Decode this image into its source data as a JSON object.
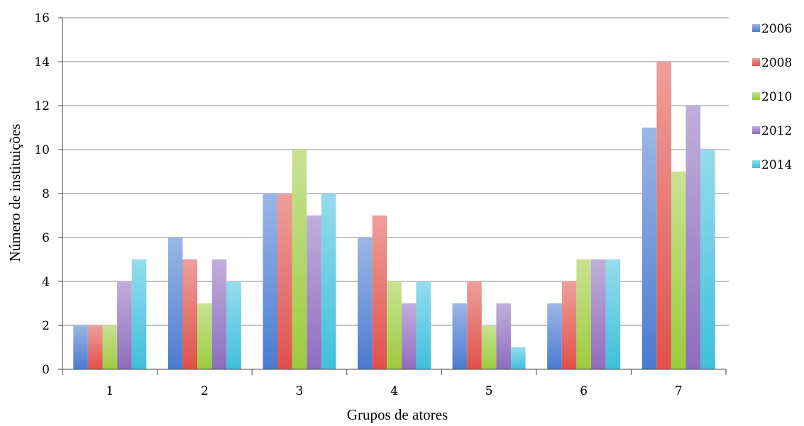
{
  "chart_data": {
    "type": "bar",
    "title": "",
    "xlabel": "Grupos de atores",
    "ylabel": "Número de instituições",
    "categories": [
      "1",
      "2",
      "3",
      "4",
      "5",
      "6",
      "7"
    ],
    "ylim": [
      0,
      16
    ],
    "yticks": [
      "0",
      "2",
      "4",
      "6",
      "8",
      "10",
      "12",
      "14",
      "16"
    ],
    "grid": true,
    "legend_position": "right",
    "series": [
      {
        "name": "2006",
        "color": "#4a7bd0",
        "values": [
          2,
          6,
          8,
          6,
          3,
          3,
          11
        ]
      },
      {
        "name": "2008",
        "color": "#e0504a",
        "values": [
          2,
          5,
          8,
          7,
          4,
          4,
          14
        ]
      },
      {
        "name": "2010",
        "color": "#9ccb3c",
        "values": [
          2,
          3,
          10,
          4,
          2,
          5,
          9
        ]
      },
      {
        "name": "2012",
        "color": "#8e6cbd",
        "values": [
          4,
          5,
          7,
          3,
          3,
          5,
          12
        ]
      },
      {
        "name": "2014",
        "color": "#3fbfdc",
        "values": [
          5,
          4,
          8,
          4,
          1,
          5,
          10
        ]
      }
    ]
  }
}
